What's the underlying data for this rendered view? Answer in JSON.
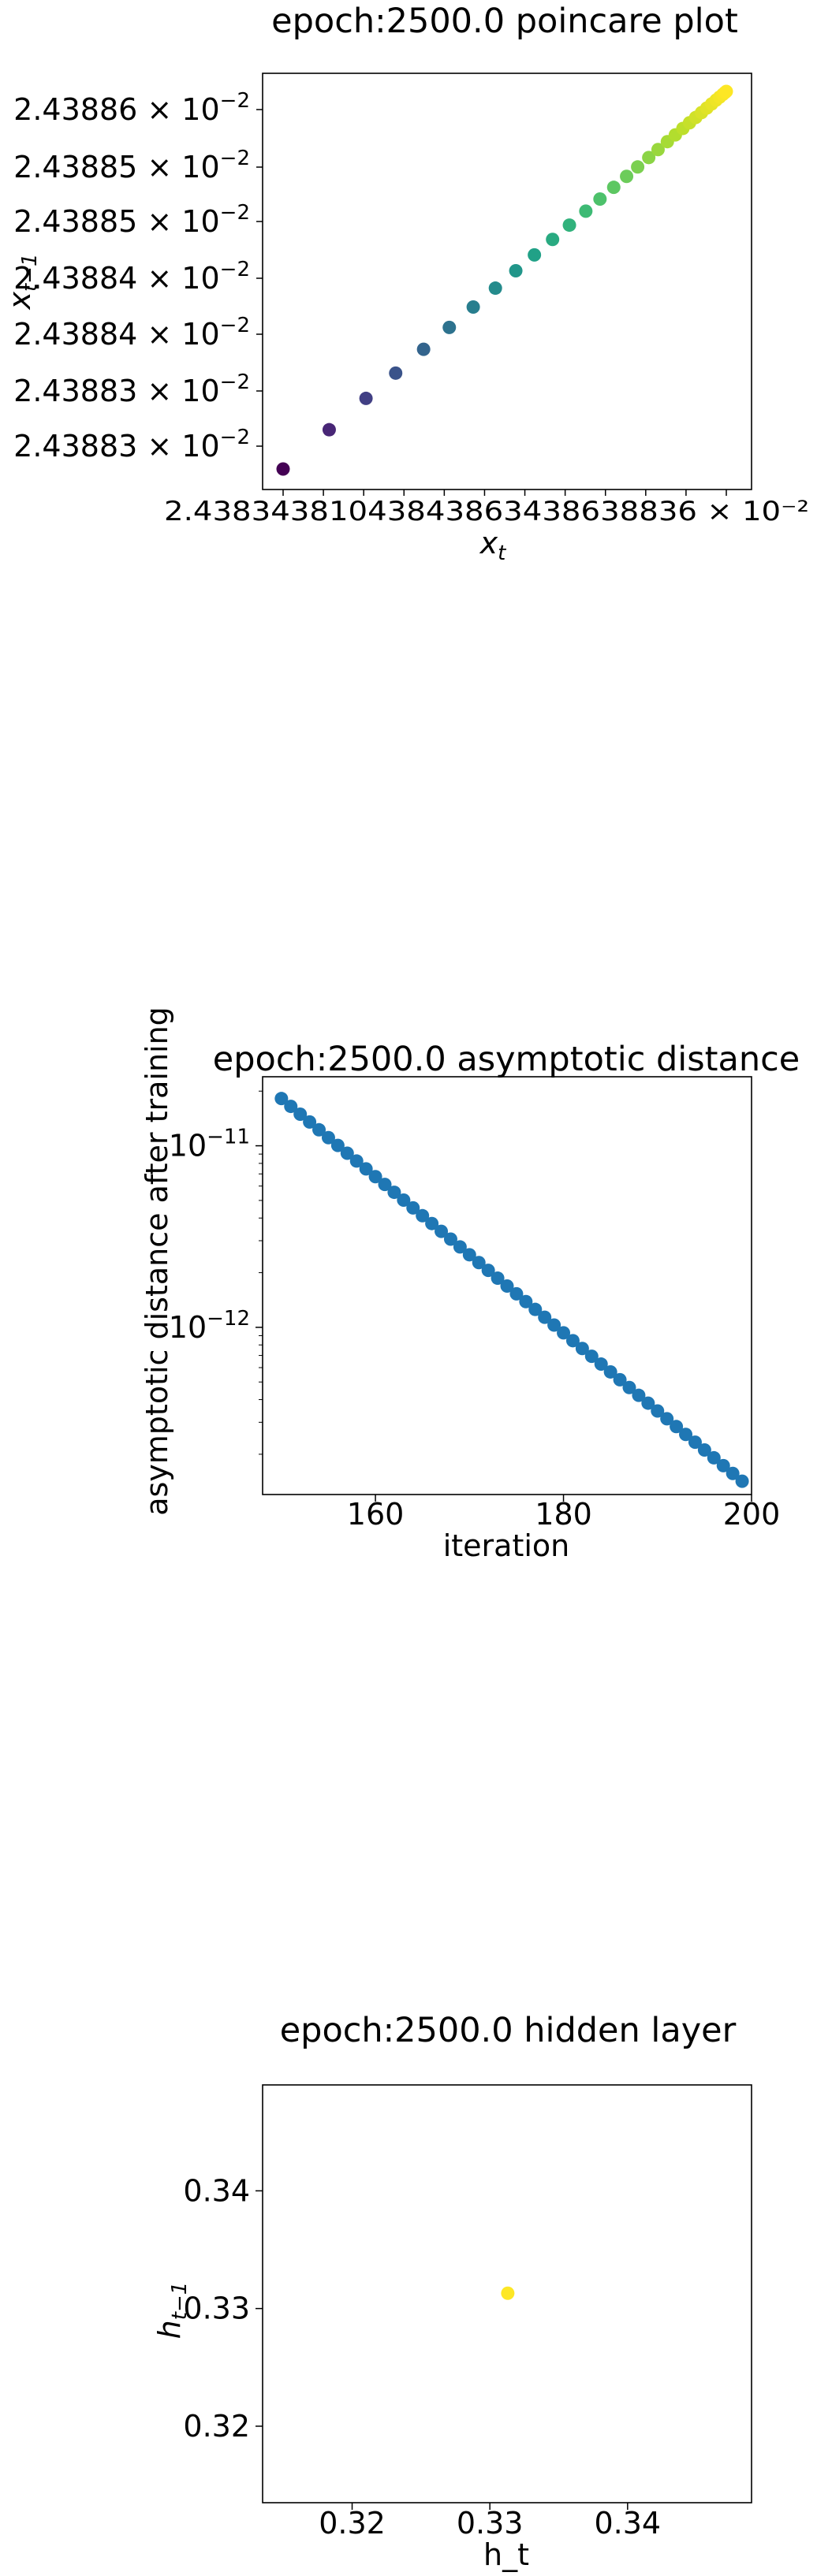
{
  "chart_data": [
    {
      "type": "scatter",
      "title": "epoch:2500.0 poincare plot",
      "xlabel_main": "x",
      "xlabel_sub": "t",
      "ylabel_main": "x",
      "ylabel_sub": "t−1",
      "colormap": "viridis",
      "ytick_mantissas": [
        "2.43886",
        "2.43885",
        "2.43885",
        "2.43884",
        "2.43884",
        "2.43883",
        "2.43883"
      ],
      "tick_base": "10",
      "tick_exponent": "−2",
      "x_offset_label": "2.43834381043843863438638836 × 10⁻²",
      "points_norm": [
        [
          0.0,
          0.0
        ],
        [
          0.104,
          0.104
        ],
        [
          0.187,
          0.187
        ],
        [
          0.254,
          0.254
        ],
        [
          0.317,
          0.317
        ],
        [
          0.375,
          0.375
        ],
        [
          0.429,
          0.429
        ],
        [
          0.479,
          0.479
        ],
        [
          0.525,
          0.525
        ],
        [
          0.567,
          0.567
        ],
        [
          0.608,
          0.608
        ],
        [
          0.646,
          0.646
        ],
        [
          0.683,
          0.683
        ],
        [
          0.715,
          0.715
        ],
        [
          0.746,
          0.746
        ],
        [
          0.775,
          0.775
        ],
        [
          0.8,
          0.8
        ],
        [
          0.825,
          0.825
        ],
        [
          0.846,
          0.846
        ],
        [
          0.867,
          0.867
        ],
        [
          0.885,
          0.885
        ],
        [
          0.902,
          0.902
        ],
        [
          0.917,
          0.917
        ],
        [
          0.931,
          0.931
        ],
        [
          0.944,
          0.944
        ],
        [
          0.956,
          0.956
        ],
        [
          0.967,
          0.967
        ],
        [
          0.977,
          0.977
        ],
        [
          0.985,
          0.985
        ],
        [
          0.992,
          0.992
        ],
        [
          0.997,
          0.997
        ],
        [
          1.0,
          1.0
        ]
      ]
    },
    {
      "type": "scatter",
      "title": "epoch:2500.0 asymptotic distance",
      "xlabel": "iteration",
      "ylabel": "asymptotic distance after training",
      "yscale": "log",
      "xlim": [
        148,
        200
      ],
      "ylim": [
        1.2e-13,
        2.4e-11
      ],
      "x_ticks": [
        160,
        180,
        200
      ],
      "x_tick_labels": [
        "160",
        "180",
        "200"
      ],
      "y_major_ticks": [
        1e-11,
        1e-12
      ],
      "y_tick_base": "10",
      "y_tick_exponents": [
        "−11",
        "−12"
      ],
      "color": "#1f77b4",
      "x": [
        150,
        151,
        152,
        153,
        154,
        155,
        156,
        157,
        158,
        159,
        160,
        161,
        162,
        163,
        164,
        165,
        166,
        167,
        168,
        169,
        170,
        171,
        172,
        173,
        174,
        175,
        176,
        177,
        178,
        179,
        180,
        181,
        182,
        183,
        184,
        185,
        186,
        187,
        188,
        189,
        190,
        191,
        192,
        193,
        194,
        195,
        196,
        197,
        198,
        199
      ],
      "y_first": 1.82e-11,
      "y_last": 1.42e-13
    },
    {
      "type": "scatter",
      "title": "epoch:2500.0 hidden layer",
      "xlabel": "h_t",
      "ylabel_main": "h",
      "ylabel_sub": "t−1",
      "xlim": [
        0.3135,
        0.349
      ],
      "ylim": [
        0.3135,
        0.349
      ],
      "x_ticks": [
        0.32,
        0.33,
        0.34
      ],
      "x_tick_labels": [
        "0.32",
        "0.33",
        "0.34"
      ],
      "y_ticks": [
        0.32,
        0.33,
        0.34
      ],
      "y_tick_labels": [
        "0.32",
        "0.33",
        "0.34"
      ],
      "color": "#fde725",
      "x": [
        0.3313
      ],
      "y": [
        0.3313
      ]
    }
  ]
}
